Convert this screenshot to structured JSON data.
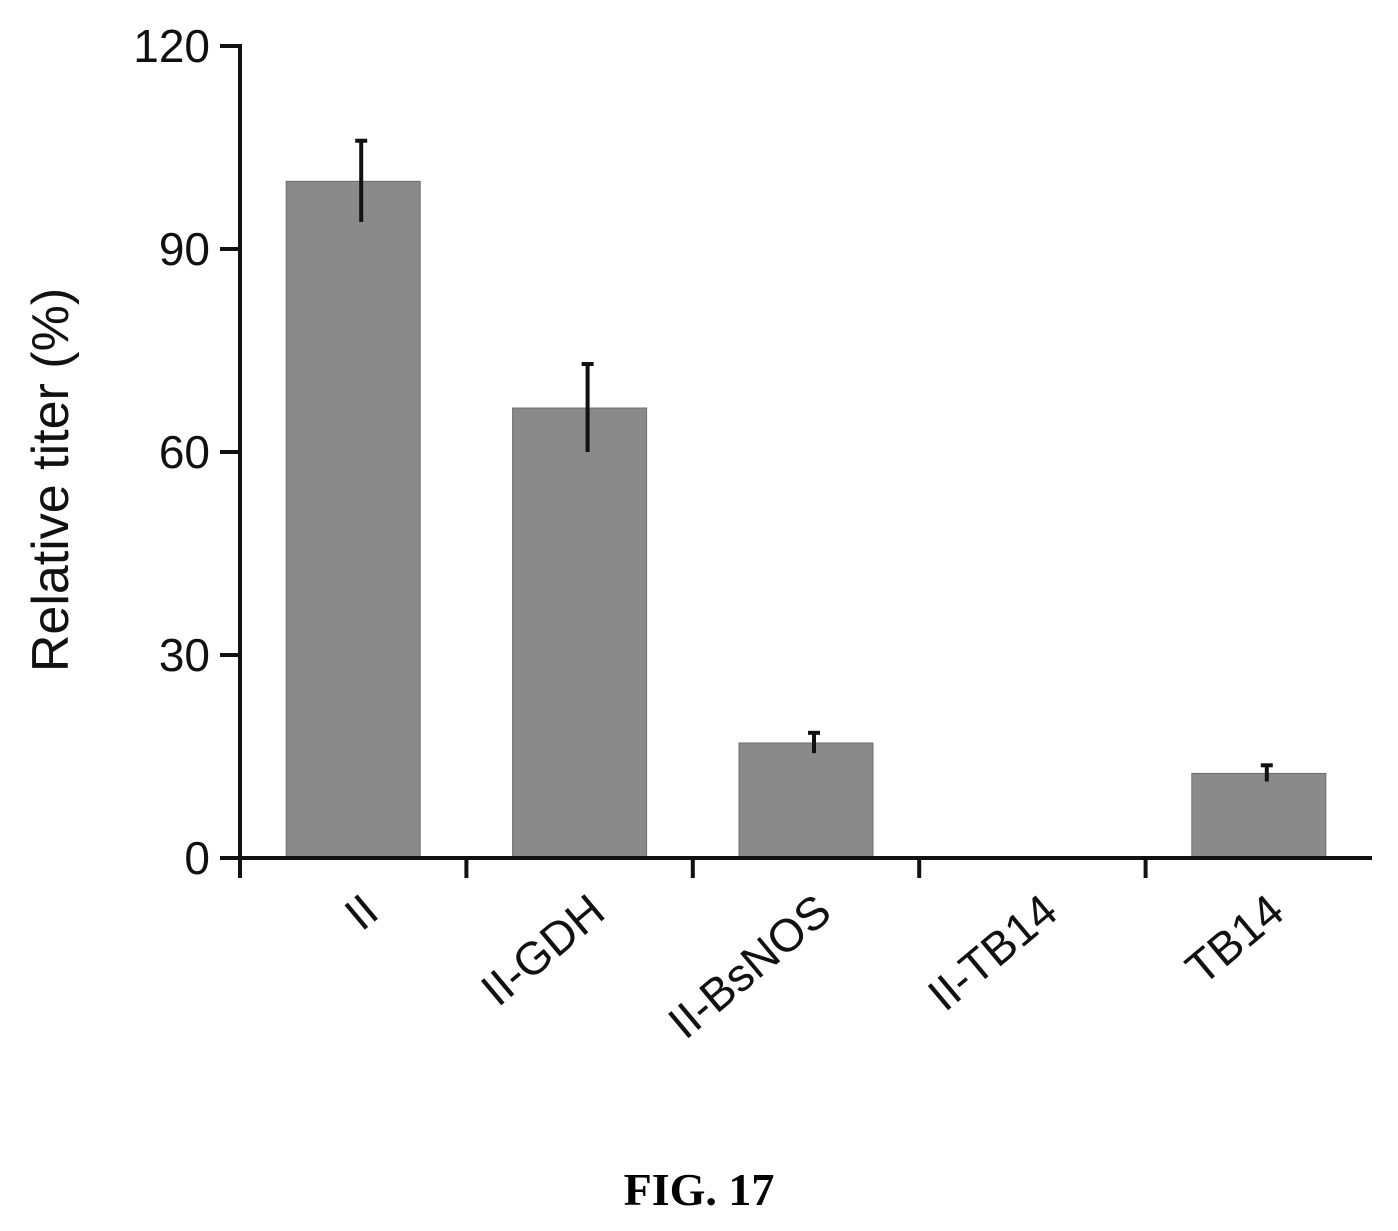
{
  "chart_data": {
    "type": "bar",
    "categories": [
      "II",
      "II-GDH",
      "II-BsNOS",
      "II-TB14",
      "TB14"
    ],
    "series": [
      {
        "values": [
          100,
          66.5,
          17,
          0,
          12.5
        ],
        "error": [
          6,
          6.5,
          1.5,
          0,
          1.2
        ]
      }
    ],
    "title": "",
    "xlabel": "",
    "ylabel": "Relative titer (%)",
    "ylim": [
      0,
      120
    ],
    "yticks": [
      0,
      30,
      60,
      90,
      120
    ],
    "grid": false,
    "legend": "none",
    "colors": {
      "bar_fill": "#8a8a8a",
      "bar_edge": "#6e6e6e",
      "axis": "#111111",
      "error_bar": "#111111"
    }
  },
  "caption": "FIG. 17"
}
